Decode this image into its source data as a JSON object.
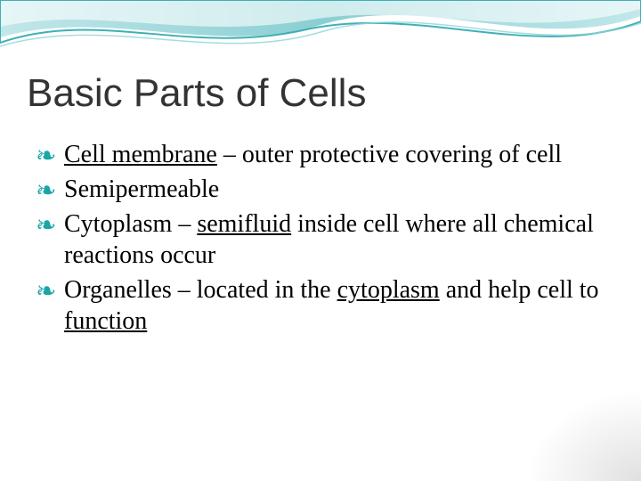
{
  "slide": {
    "title": "Basic Parts of Cells",
    "title_fontsize": 44,
    "title_color": "#333333",
    "bullet_glyph": "་",
    "bullet_glyph_display": "g",
    "bullet_color": "#1aa6a6",
    "body_fontsize": 28,
    "body_color": "#000000",
    "line_height": 1.25,
    "items": [
      {
        "runs": [
          {
            "text": "Cell membrane",
            "underline": true
          },
          {
            "text": " – outer protective covering of cell"
          }
        ]
      },
      {
        "runs": [
          {
            "text": "Semipermeable"
          }
        ]
      },
      {
        "runs": [
          {
            "text": "Cytoplasm – "
          },
          {
            "text": "semifluid",
            "underline": true
          },
          {
            "text": " inside cell where all chemical reactions occur"
          }
        ]
      },
      {
        "runs": [
          {
            "text": "Organelles – located in the "
          },
          {
            "text": "cytoplasm",
            "underline": true
          },
          {
            "text": " and help cell to "
          },
          {
            "text": "function",
            "underline": true
          }
        ]
      }
    ]
  },
  "theme": {
    "wave_color_outer": "#8fd4d8",
    "wave_color_inner": "#2aa7ae",
    "wave_highlight": "#ffffff",
    "background": "#ffffff"
  }
}
